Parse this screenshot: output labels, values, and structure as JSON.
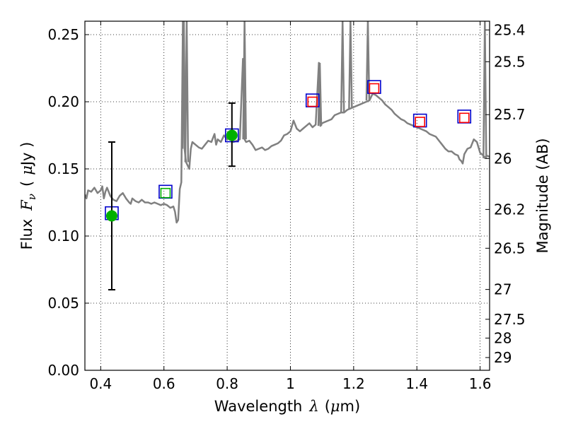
{
  "chart_data": {
    "type": "line",
    "title": "",
    "xlabel": {
      "prefix": "Wavelength",
      "symbol": "λ",
      "unit_open": "(",
      "unit_mu": "μ",
      "unit_rest": "m)"
    },
    "ylabel": {
      "prefix": "Flux",
      "symbol": "F",
      "subscript": "ν",
      "unit_open": "(",
      "unit_mu": "μ",
      "unit_rest": "Jy )"
    },
    "ylabel_right": "Magnitude (AB)",
    "xlim": [
      0.35,
      1.63
    ],
    "ylim": [
      0.0,
      0.26
    ],
    "grid": true,
    "x_ticks": [
      0.4,
      0.6,
      0.8,
      1.0,
      1.2,
      1.4,
      1.6
    ],
    "x_tick_labels": [
      "0.4",
      "0.6",
      "0.8",
      "1",
      "1.2",
      "1.4",
      "1.6"
    ],
    "y_ticks": [
      0.0,
      0.05,
      0.1,
      0.15,
      0.2,
      0.25
    ],
    "y_tick_labels": [
      "0.00",
      "0.05",
      "0.10",
      "0.15",
      "0.20",
      "0.25"
    ],
    "right_axis": {
      "tick_flux": [
        0.2535,
        0.2298,
        0.1904,
        0.1577,
        0.1198,
        0.0909,
        0.0602,
        0.038,
        0.024,
        0.0095
      ],
      "tick_labels": [
        "25.4",
        "25.5",
        "25.7",
        "26",
        "26.2",
        "26.5",
        "27",
        "27.5",
        "28",
        "29"
      ]
    },
    "colors": {
      "spectrum": "#808080",
      "blue_marker": "#0000cc",
      "green_marker": "#00b000",
      "red_marker": "#ff0000",
      "errorbar": "#000000"
    },
    "series": [
      {
        "kind": "model-spectrum",
        "color": "#808080",
        "points": [
          [
            0.35,
            0.131
          ],
          [
            0.355,
            0.128
          ],
          [
            0.36,
            0.134
          ],
          [
            0.37,
            0.133
          ],
          [
            0.38,
            0.136
          ],
          [
            0.39,
            0.132
          ],
          [
            0.4,
            0.134
          ],
          [
            0.405,
            0.137
          ],
          [
            0.41,
            0.128
          ],
          [
            0.415,
            0.133
          ],
          [
            0.42,
            0.136
          ],
          [
            0.43,
            0.13
          ],
          [
            0.44,
            0.127
          ],
          [
            0.45,
            0.126
          ],
          [
            0.46,
            0.13
          ],
          [
            0.47,
            0.132
          ],
          [
            0.48,
            0.128
          ],
          [
            0.49,
            0.125
          ],
          [
            0.495,
            0.124
          ],
          [
            0.5,
            0.128
          ],
          [
            0.51,
            0.126
          ],
          [
            0.52,
            0.125
          ],
          [
            0.53,
            0.127
          ],
          [
            0.54,
            0.125
          ],
          [
            0.55,
            0.125
          ],
          [
            0.56,
            0.124
          ],
          [
            0.57,
            0.125
          ],
          [
            0.58,
            0.124
          ],
          [
            0.59,
            0.123
          ],
          [
            0.6,
            0.124
          ],
          [
            0.61,
            0.123
          ],
          [
            0.62,
            0.121
          ],
          [
            0.63,
            0.122
          ],
          [
            0.635,
            0.118
          ],
          [
            0.64,
            0.11
          ],
          [
            0.645,
            0.112
          ],
          [
            0.65,
            0.135
          ],
          [
            0.655,
            0.14
          ],
          [
            0.66,
            0.26
          ],
          [
            0.665,
            0.165
          ],
          [
            0.67,
            0.155
          ],
          [
            0.68,
            0.15
          ],
          [
            0.685,
            0.165
          ],
          [
            0.69,
            0.17
          ],
          [
            0.7,
            0.168
          ],
          [
            0.71,
            0.166
          ],
          [
            0.72,
            0.165
          ],
          [
            0.73,
            0.168
          ],
          [
            0.74,
            0.171
          ],
          [
            0.75,
            0.17
          ],
          [
            0.76,
            0.176
          ],
          [
            0.765,
            0.168
          ],
          [
            0.77,
            0.172
          ],
          [
            0.78,
            0.17
          ],
          [
            0.79,
            0.175
          ],
          [
            0.8,
            0.172
          ],
          [
            0.81,
            0.174
          ],
          [
            0.815,
            0.176
          ],
          [
            0.82,
            0.17
          ],
          [
            0.83,
            0.171
          ],
          [
            0.84,
            0.172
          ],
          [
            0.85,
            0.232
          ],
          [
            0.855,
            0.172
          ],
          [
            0.86,
            0.17
          ],
          [
            0.87,
            0.171
          ],
          [
            0.88,
            0.168
          ],
          [
            0.89,
            0.164
          ],
          [
            0.9,
            0.165
          ],
          [
            0.91,
            0.166
          ],
          [
            0.92,
            0.164
          ],
          [
            0.93,
            0.165
          ],
          [
            0.94,
            0.167
          ],
          [
            0.95,
            0.168
          ],
          [
            0.96,
            0.169
          ],
          [
            0.97,
            0.171
          ],
          [
            0.98,
            0.175
          ],
          [
            0.99,
            0.176
          ],
          [
            1.0,
            0.178
          ],
          [
            1.01,
            0.186
          ],
          [
            1.02,
            0.18
          ],
          [
            1.03,
            0.178
          ],
          [
            1.04,
            0.18
          ],
          [
            1.05,
            0.182
          ],
          [
            1.06,
            0.184
          ],
          [
            1.07,
            0.181
          ],
          [
            1.08,
            0.183
          ],
          [
            1.09,
            0.229
          ],
          [
            1.095,
            0.182
          ],
          [
            1.1,
            0.184
          ],
          [
            1.11,
            0.185
          ],
          [
            1.12,
            0.186
          ],
          [
            1.13,
            0.187
          ],
          [
            1.14,
            0.19
          ],
          [
            1.15,
            0.191
          ],
          [
            1.16,
            0.192
          ],
          [
            1.17,
            0.192
          ],
          [
            1.18,
            0.194
          ],
          [
            1.19,
            0.195
          ],
          [
            1.2,
            0.196
          ],
          [
            1.21,
            0.197
          ],
          [
            1.22,
            0.198
          ],
          [
            1.23,
            0.199
          ],
          [
            1.24,
            0.2
          ],
          [
            1.25,
            0.201
          ],
          [
            1.26,
            0.206
          ],
          [
            1.27,
            0.205
          ],
          [
            1.28,
            0.203
          ],
          [
            1.29,
            0.201
          ],
          [
            1.3,
            0.198
          ],
          [
            1.31,
            0.196
          ],
          [
            1.32,
            0.194
          ],
          [
            1.33,
            0.191
          ],
          [
            1.34,
            0.189
          ],
          [
            1.35,
            0.187
          ],
          [
            1.36,
            0.186
          ],
          [
            1.37,
            0.184
          ],
          [
            1.38,
            0.183
          ],
          [
            1.39,
            0.182
          ],
          [
            1.4,
            0.181
          ],
          [
            1.41,
            0.18
          ],
          [
            1.42,
            0.179
          ],
          [
            1.43,
            0.178
          ],
          [
            1.44,
            0.176
          ],
          [
            1.45,
            0.175
          ],
          [
            1.46,
            0.174
          ],
          [
            1.47,
            0.171
          ],
          [
            1.48,
            0.168
          ],
          [
            1.49,
            0.165
          ],
          [
            1.5,
            0.163
          ],
          [
            1.51,
            0.163
          ],
          [
            1.52,
            0.161
          ],
          [
            1.53,
            0.16
          ],
          [
            1.535,
            0.157
          ],
          [
            1.54,
            0.156
          ],
          [
            1.545,
            0.154
          ],
          [
            1.55,
            0.161
          ],
          [
            1.56,
            0.165
          ],
          [
            1.57,
            0.166
          ],
          [
            1.58,
            0.172
          ],
          [
            1.59,
            0.17
          ],
          [
            1.6,
            0.162
          ],
          [
            1.61,
            0.16
          ],
          [
            1.615,
            0.158
          ],
          [
            1.62,
            0.16
          ],
          [
            1.63,
            0.159
          ]
        ],
        "emission_lines": [
          {
            "x": 0.663,
            "peak": 0.26
          },
          {
            "x": 0.672,
            "peak": 0.26
          },
          {
            "x": 0.855,
            "peak": 0.26
          },
          {
            "x": 1.093,
            "peak": 0.229
          },
          {
            "x": 1.165,
            "peak": 0.26
          },
          {
            "x": 1.19,
            "peak": 0.26
          },
          {
            "x": 1.245,
            "peak": 0.26
          },
          {
            "x": 1.615,
            "peak": 0.26
          }
        ]
      },
      {
        "kind": "blue-open-squares",
        "marker": "square",
        "color": "#0000cc",
        "points": [
          [
            0.435,
            0.117
          ],
          [
            0.605,
            0.133
          ],
          [
            0.815,
            0.175
          ],
          [
            1.07,
            0.201
          ],
          [
            1.265,
            0.211
          ],
          [
            1.41,
            0.186
          ],
          [
            1.55,
            0.189
          ]
        ]
      },
      {
        "kind": "red-open-squares",
        "marker": "square",
        "color": "#ff0000",
        "points": [
          [
            1.07,
            0.2
          ],
          [
            1.265,
            0.21
          ],
          [
            1.41,
            0.185
          ],
          [
            1.55,
            0.188
          ]
        ]
      },
      {
        "kind": "green-open-square",
        "marker": "square",
        "color": "#00b000",
        "points": [
          [
            0.605,
            0.132
          ]
        ]
      },
      {
        "kind": "green-filled-circles",
        "marker": "circle",
        "color": "#00b000",
        "points": [
          [
            0.435,
            0.115
          ],
          [
            0.815,
            0.175
          ]
        ],
        "errors": [
          [
            0.06,
            0.17
          ],
          [
            0.152,
            0.199
          ]
        ]
      }
    ]
  }
}
